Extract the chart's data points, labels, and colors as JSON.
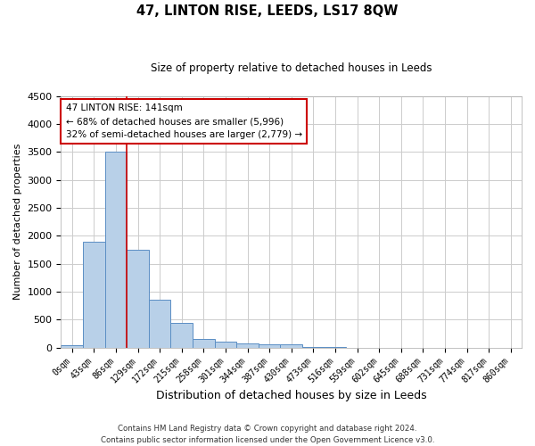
{
  "title": "47, LINTON RISE, LEEDS, LS17 8QW",
  "subtitle": "Size of property relative to detached houses in Leeds",
  "xlabel": "Distribution of detached houses by size in Leeds",
  "ylabel": "Number of detached properties",
  "categories": [
    "0sqm",
    "43sqm",
    "86sqm",
    "129sqm",
    "172sqm",
    "215sqm",
    "258sqm",
    "301sqm",
    "344sqm",
    "387sqm",
    "430sqm",
    "473sqm",
    "516sqm",
    "559sqm",
    "602sqm",
    "645sqm",
    "688sqm",
    "731sqm",
    "774sqm",
    "817sqm",
    "860sqm"
  ],
  "values": [
    50,
    1900,
    3500,
    1750,
    850,
    450,
    150,
    100,
    75,
    60,
    55,
    10,
    5,
    3,
    2,
    1,
    1,
    1,
    0,
    0,
    0
  ],
  "bar_color": "#b8d0e8",
  "bar_edge_color": "#5b8ec4",
  "property_line_index": 3,
  "annotation_text_line1": "47 LINTON RISE: 141sqm",
  "annotation_text_line2": "← 68% of detached houses are smaller (5,996)",
  "annotation_text_line3": "32% of semi-detached houses are larger (2,779) →",
  "annotation_box_color": "#cc0000",
  "ylim": [
    0,
    4500
  ],
  "footnote1": "Contains HM Land Registry data © Crown copyright and database right 2024.",
  "footnote2": "Contains public sector information licensed under the Open Government Licence v3.0.",
  "background_color": "#ffffff",
  "grid_color": "#cccccc"
}
